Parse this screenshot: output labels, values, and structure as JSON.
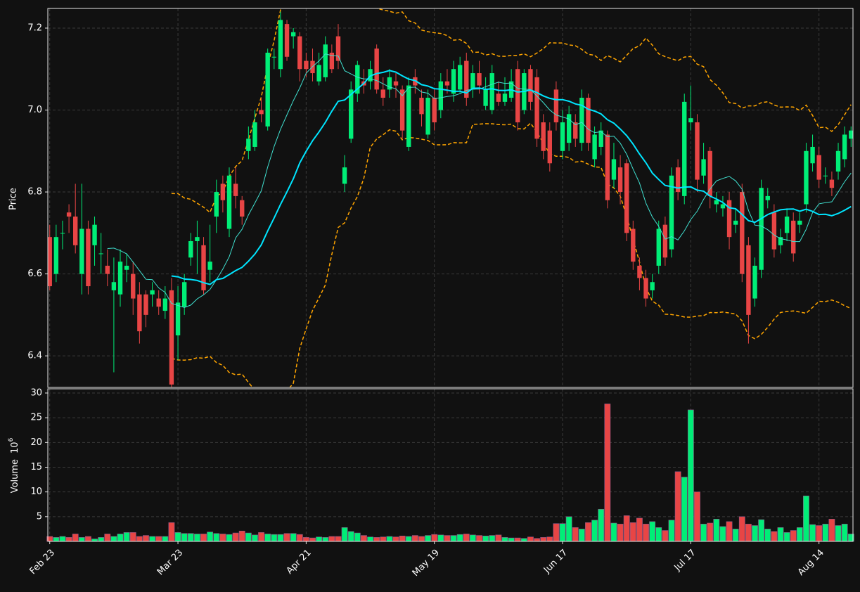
{
  "chart_data": {
    "type": "candlestick",
    "y_label": "Price",
    "volume_label": "Volume",
    "volume_unit_base": "10",
    "volume_unit_exponent": "6",
    "up_color": "#00ee77",
    "down_color": "#e84545",
    "grid": true,
    "mav": [
      10,
      20
    ],
    "mav_colors": [
      "#40e0d0",
      "#00e5ff"
    ],
    "bollinger": {
      "period": 20,
      "std": 2,
      "color": "#ffa500"
    },
    "xlim": [
      -0.3,
      125.3
    ],
    "xticks": [
      {
        "value": 0,
        "label": "Feb 23"
      },
      {
        "value": 20,
        "label": "Mar 23"
      },
      {
        "value": 40,
        "label": "Apr 21"
      },
      {
        "value": 60,
        "label": "May 19"
      },
      {
        "value": 80,
        "label": "Jun 17"
      },
      {
        "value": 100,
        "label": "Jul 17"
      },
      {
        "value": 120,
        "label": "Aug 14"
      }
    ],
    "ylim": [
      6.323,
      7.248
    ],
    "yticks": [
      6.4,
      6.6,
      6.8,
      {
        "value": 7,
        "label": "7.0"
      },
      7.2
    ],
    "volume_ylim": [
      0,
      30.85
    ],
    "volume_yticks": [
      5,
      10,
      15,
      20,
      25,
      30
    ],
    "open": [
      6.69,
      6.6,
      6.7,
      6.75,
      6.74,
      6.6,
      6.71,
      6.67,
      6.65,
      6.62,
      6.56,
      6.55,
      6.61,
      6.6,
      6.55,
      6.55,
      6.55,
      6.54,
      6.51,
      6.56,
      6.45,
      6.52,
      6.64,
      6.68,
      6.67,
      6.61,
      6.74,
      6.82,
      6.71,
      6.82,
      6.78,
      6.9,
      6.91,
      7.0,
      6.96,
      7.13,
      7.1,
      7.21,
      7.18,
      7.18,
      7.12,
      7.12,
      7.07,
      7.08,
      7.14,
      7.18,
      6.82,
      6.93,
      7.04,
      7.07,
      7.07,
      7.15,
      7.05,
      7.05,
      7.07,
      7.05,
      6.91,
      7.08,
      7.03,
      6.94,
      7.03,
      7.0,
      7.07,
      7.04,
      7.05,
      7.12,
      7.05,
      7.09,
      7.01,
      7.0,
      7.04,
      7.02,
      7.03,
      7.1,
      7.0,
      7.1,
      7.08,
      6.97,
      6.95,
      7.05,
      6.9,
      6.92,
      6.97,
      6.92,
      7.03,
      6.88,
      6.91,
      6.94,
      6.83,
      6.86,
      6.87,
      6.71,
      6.62,
      6.59,
      6.56,
      6.62,
      6.72,
      6.66,
      6.86,
      6.79,
      6.97,
      6.97,
      6.84,
      6.9,
      6.77,
      6.76,
      6.78,
      6.72,
      6.8,
      6.67,
      6.54,
      6.61,
      6.78,
      6.75,
      6.67,
      6.7,
      6.73,
      6.72,
      6.77,
      6.87,
      6.89,
      6.84,
      6.83,
      6.85,
      6.88,
      6.93
    ],
    "high": [
      6.72,
      6.72,
      6.73,
      6.77,
      6.82,
      6.82,
      6.73,
      6.74,
      6.7,
      6.66,
      6.64,
      6.66,
      6.65,
      6.63,
      6.58,
      6.56,
      6.58,
      6.56,
      6.57,
      6.59,
      6.57,
      6.6,
      6.7,
      6.73,
      6.69,
      6.72,
      6.83,
      6.84,
      6.86,
      6.86,
      6.79,
      6.96,
      7.0,
      7.03,
      7.15,
      7.15,
      7.24,
      7.22,
      7.2,
      7.19,
      7.14,
      7.15,
      7.14,
      7.18,
      7.16,
      7.21,
      6.89,
      7.07,
      7.12,
      7.1,
      7.12,
      7.16,
      7.08,
      7.1,
      7.09,
      7.06,
      7.08,
      7.1,
      7.05,
      7.05,
      7.05,
      7.09,
      7.1,
      7.12,
      7.13,
      7.14,
      7.11,
      7.12,
      7.08,
      7.11,
      7.07,
      7.08,
      7.1,
      7.12,
      7.1,
      7.11,
      7.1,
      6.99,
      6.97,
      7.07,
      7.0,
      7.01,
      6.99,
      7.05,
      7.04,
      6.96,
      6.97,
      6.95,
      6.92,
      6.89,
      6.88,
      6.73,
      6.64,
      6.61,
      6.6,
      6.73,
      6.74,
      6.86,
      6.88,
      7.04,
      7.06,
      6.99,
      6.92,
      6.91,
      6.8,
      6.79,
      6.8,
      6.76,
      6.82,
      6.69,
      6.64,
      6.83,
      6.81,
      6.77,
      6.71,
      6.76,
      6.75,
      6.75,
      6.92,
      6.94,
      6.91,
      6.86,
      6.85,
      6.92,
      6.96,
      6.96
    ],
    "low": [
      6.56,
      6.58,
      6.66,
      6.7,
      6.65,
      6.55,
      6.55,
      6.62,
      6.6,
      6.57,
      6.36,
      6.52,
      6.58,
      6.5,
      6.43,
      6.47,
      6.52,
      6.5,
      6.49,
      6.32,
      6.39,
      6.5,
      6.62,
      6.6,
      6.55,
      6.58,
      6.7,
      6.75,
      6.69,
      6.76,
      6.72,
      6.88,
      6.9,
      6.97,
      6.95,
      7.1,
      7.08,
      7.12,
      7.15,
      7.07,
      7.08,
      7.07,
      7.06,
      7.07,
      7.09,
      7.1,
      6.8,
      6.92,
      7.02,
      7.04,
      7.05,
      7.04,
      7.01,
      7.03,
      7.03,
      6.93,
      6.9,
      7.04,
      6.96,
      6.93,
      6.95,
      6.98,
      7.04,
      7.02,
      7.04,
      7.01,
      7.03,
      7.04,
      7.0,
      6.99,
      7.01,
      7.01,
      7.02,
      6.95,
      6.99,
      7.0,
      6.91,
      6.88,
      6.85,
      6.95,
      6.88,
      6.9,
      6.91,
      6.9,
      6.9,
      6.86,
      6.89,
      6.76,
      6.81,
      6.77,
      6.68,
      6.61,
      6.56,
      6.52,
      6.54,
      6.6,
      6.62,
      6.64,
      6.78,
      6.77,
      6.95,
      6.8,
      6.82,
      6.76,
      6.75,
      6.74,
      6.66,
      6.7,
      6.58,
      6.43,
      6.52,
      6.59,
      6.76,
      6.64,
      6.65,
      6.68,
      6.63,
      6.7,
      6.75,
      6.85,
      6.81,
      6.82,
      6.79,
      6.83,
      6.86,
      6.91
    ],
    "close": [
      6.57,
      6.69,
      6.7,
      6.74,
      6.67,
      6.71,
      6.57,
      6.72,
      6.65,
      6.6,
      6.58,
      6.63,
      6.62,
      6.54,
      6.46,
      6.5,
      6.56,
      6.52,
      6.54,
      6.33,
      6.53,
      6.58,
      6.68,
      6.69,
      6.56,
      6.63,
      6.8,
      6.78,
      6.84,
      6.79,
      6.74,
      6.93,
      6.97,
      6.99,
      7.14,
      7.13,
      7.22,
      7.13,
      7.19,
      7.1,
      7.1,
      7.09,
      7.11,
      7.16,
      7.1,
      7.12,
      6.86,
      7.05,
      7.11,
      7.06,
      7.1,
      7.05,
      7.03,
      7.08,
      7.06,
      6.95,
      7.06,
      7.06,
      6.99,
      7.03,
      6.97,
      7.07,
      7.06,
      7.1,
      7.11,
      7.03,
      7.09,
      7.06,
      7.05,
      7.09,
      7.02,
      7.04,
      7.07,
      6.97,
      7.09,
      7.02,
      6.93,
      6.9,
      6.87,
      6.97,
      6.97,
      6.99,
      6.93,
      7.03,
      6.92,
      6.94,
      6.95,
      6.78,
      6.88,
      6.8,
      6.7,
      6.63,
      6.59,
      6.54,
      6.58,
      6.71,
      6.64,
      6.84,
      6.8,
      7.02,
      6.98,
      6.83,
      6.88,
      6.79,
      6.78,
      6.77,
      6.69,
      6.73,
      6.6,
      6.5,
      6.62,
      6.81,
      6.79,
      6.66,
      6.69,
      6.74,
      6.65,
      6.73,
      6.9,
      6.91,
      6.83,
      6.84,
      6.81,
      6.9,
      6.94,
      6.95
    ],
    "volume": [
      1.0,
      0.8,
      1.0,
      0.8,
      1.5,
      0.8,
      1.0,
      0.5,
      0.8,
      1.5,
      1.0,
      1.5,
      1.8,
      1.8,
      1.0,
      1.2,
      1.0,
      1.0,
      1.0,
      3.8,
      1.8,
      1.6,
      1.6,
      1.5,
      1.5,
      1.9,
      1.6,
      1.5,
      1.4,
      1.7,
      2.1,
      1.7,
      1.3,
      1.8,
      1.5,
      1.4,
      1.4,
      1.6,
      1.6,
      1.4,
      0.8,
      0.7,
      0.9,
      0.8,
      1.0,
      1.0,
      2.8,
      2.0,
      1.7,
      1.2,
      0.9,
      0.8,
      0.9,
      1.0,
      0.9,
      1.1,
      1.0,
      1.2,
      1.0,
      1.2,
      1.4,
      1.3,
      1.2,
      1.2,
      1.4,
      1.5,
      1.3,
      1.2,
      1.1,
      1.2,
      1.3,
      0.8,
      0.7,
      0.7,
      0.6,
      0.9,
      0.6,
      0.8,
      0.9,
      3.6,
      3.6,
      5.0,
      2.8,
      2.5,
      3.8,
      4.3,
      6.5,
      27.8,
      3.7,
      3.5,
      5.2,
      3.8,
      4.7,
      3.5,
      4.0,
      2.8,
      2.2,
      4.3,
      14.1,
      13.0,
      26.6,
      10.0,
      3.5,
      3.7,
      4.5,
      3.0,
      4.0,
      2.5,
      5.0,
      3.5,
      3.2,
      4.4,
      2.5,
      2.0,
      2.8,
      1.8,
      2.2,
      2.8,
      9.2,
      3.4,
      3.2,
      3.5,
      4.5,
      3.2,
      3.5,
      1.5
    ]
  }
}
